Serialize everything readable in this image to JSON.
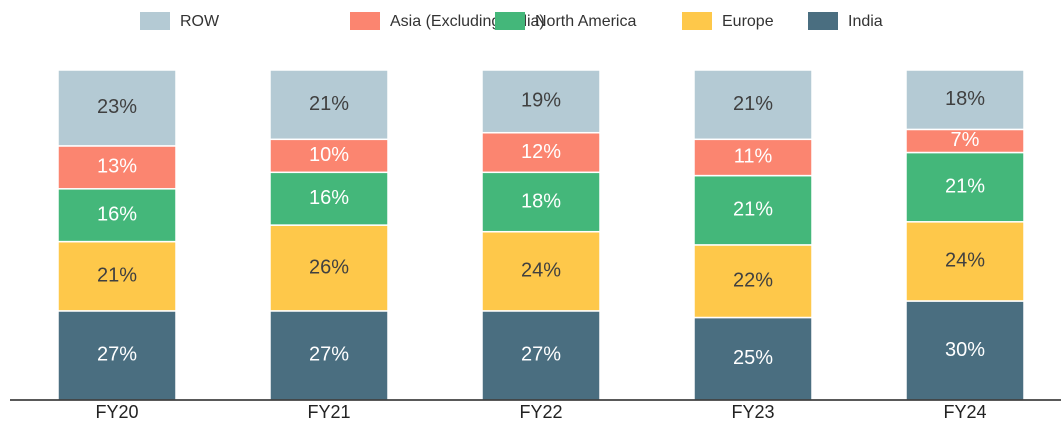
{
  "chart_data": {
    "type": "stacked_bar",
    "categories": [
      "FY20",
      "FY21",
      "FY22",
      "FY23",
      "FY24"
    ],
    "series": [
      {
        "name": "ROW",
        "color": "#b4cad4",
        "values": [
          23,
          21,
          19,
          21,
          18
        ],
        "value_labels": [
          "23%",
          "21%",
          "19%",
          "21%",
          "18%"
        ]
      },
      {
        "name": "Asia (Excluding India)",
        "color": "#fb8570",
        "values": [
          13,
          10,
          12,
          11,
          7
        ],
        "value_labels": [
          "13%",
          "10%",
          "12%",
          "11%",
          "7%"
        ]
      },
      {
        "name": "North America",
        "color": "#44b77a",
        "values": [
          16,
          16,
          18,
          21,
          21
        ],
        "value_labels": [
          "16%",
          "16%",
          "18%",
          "21%",
          "21%"
        ]
      },
      {
        "name": "Europe",
        "color": "#fec84a",
        "values": [
          21,
          26,
          24,
          22,
          24
        ],
        "value_labels": [
          "21%",
          "26%",
          "24%",
          "22%",
          "24%"
        ]
      },
      {
        "name": "India",
        "color": "#4a6e80",
        "values": [
          27,
          27,
          27,
          25,
          30
        ],
        "value_labels": [
          "27%",
          "27%",
          "27%",
          "25%",
          "30%"
        ]
      }
    ],
    "ylim": [
      0,
      100
    ],
    "legend": "top"
  }
}
